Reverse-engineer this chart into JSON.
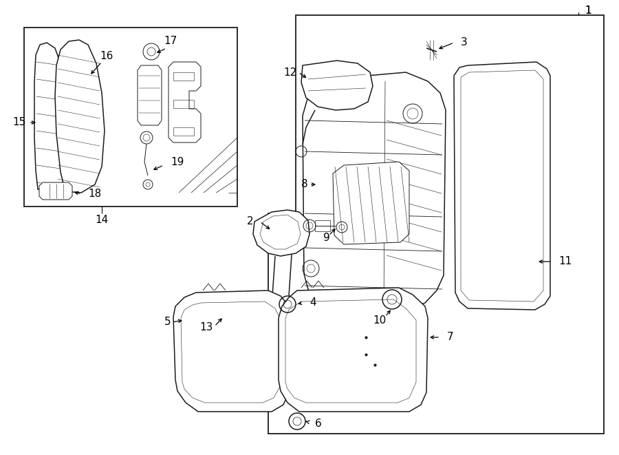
{
  "bg_color": "#ffffff",
  "line_color": "#1a1a1a",
  "fig_width": 9.0,
  "fig_height": 6.61,
  "dpi": 100,
  "font_size": 11,
  "arrow_color": "#000000"
}
